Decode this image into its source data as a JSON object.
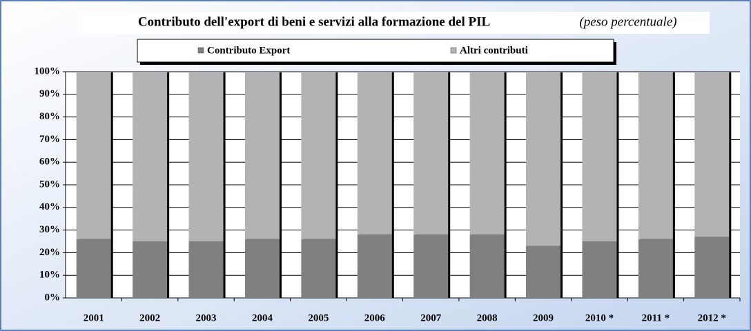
{
  "chart_data": {
    "type": "stacked_bar",
    "title": "Contributo dell'export di beni e servizi alla formazione del PIL",
    "subtitle": "(peso percentuale)",
    "categories": [
      "2001",
      "2002",
      "2003",
      "2004",
      "2005",
      "2006",
      "2007",
      "2008",
      "2009",
      "2010 *",
      "2011 *",
      "2012 *"
    ],
    "series": [
      {
        "name": "Contributo Export",
        "color": "#808080",
        "values": [
          26,
          25,
          25,
          26,
          26,
          28,
          28,
          28,
          23,
          25,
          26,
          27
        ]
      },
      {
        "name": "Altri contributi",
        "color": "#b3b3b3",
        "values": [
          74,
          75,
          75,
          74,
          74,
          72,
          72,
          72,
          77,
          75,
          74,
          73
        ]
      }
    ],
    "ylim": [
      0,
      100
    ],
    "yticks": [
      {
        "value": 0,
        "label": "0%"
      },
      {
        "value": 10,
        "label": "10%"
      },
      {
        "value": 20,
        "label": "20%"
      },
      {
        "value": 30,
        "label": "30%"
      },
      {
        "value": 40,
        "label": "40%"
      },
      {
        "value": 50,
        "label": "50%"
      },
      {
        "value": 60,
        "label": "60%"
      },
      {
        "value": 70,
        "label": "70%"
      },
      {
        "value": 80,
        "label": "80%"
      },
      {
        "value": 90,
        "label": "90%"
      },
      {
        "value": 100,
        "label": "100%"
      }
    ],
    "grid": true
  }
}
